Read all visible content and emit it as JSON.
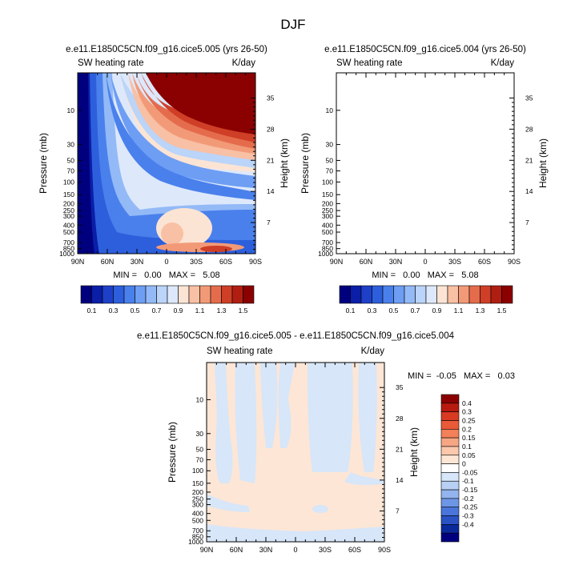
{
  "figure": {
    "title": "DJF"
  },
  "chart_data": [
    {
      "type": "heatmap",
      "panel": "left",
      "title": "e.e11.E1850C5CN.f09_g16.cice5.005 (yrs 26-50)",
      "variable": "SW heating rate",
      "units": "K/day",
      "ylabel": "Pressure (mb)",
      "ylabel_right": "Height (km)",
      "x_ticks": [
        "90N",
        "60N",
        "30N",
        "0",
        "30S",
        "60S",
        "90S"
      ],
      "y_ticks": [
        "10",
        "30",
        "50",
        "70",
        "100",
        "150",
        "200",
        "250",
        "300",
        "400",
        "500",
        "700",
        "850",
        "1000"
      ],
      "height_ticks": [
        "35",
        "28",
        "21",
        "14",
        "7"
      ],
      "min_max": "MIN =   0.00   MAX =   5.08",
      "colorbar_labels": [
        "0.1",
        "0.3",
        "0.5",
        "0.7",
        "0.9",
        "1.1",
        "1.3",
        "1.5"
      ],
      "xlim": [
        90,
        -90
      ],
      "ylim": [
        1000,
        3
      ]
    },
    {
      "type": "heatmap",
      "panel": "right",
      "title": "e.e11.E1850C5CN.f09_g16.cice5.004 (yrs 26-50)",
      "variable": "SW heating rate",
      "units": "K/day",
      "ylabel": "Pressure (mb)",
      "ylabel_right": "Height (km)",
      "x_ticks": [
        "90N",
        "60N",
        "30N",
        "0",
        "30S",
        "60S",
        "90S"
      ],
      "y_ticks": [
        "10",
        "30",
        "50",
        "70",
        "100",
        "150",
        "200",
        "250",
        "300",
        "400",
        "500",
        "700",
        "850",
        "1000"
      ],
      "height_ticks": [
        "35",
        "28",
        "21",
        "14",
        "7"
      ],
      "min_max": "MIN =   0.00   MAX =   5.08",
      "colorbar_labels": [
        "0.1",
        "0.3",
        "0.5",
        "0.7",
        "0.9",
        "1.1",
        "1.3",
        "1.5"
      ],
      "xlim": [
        90,
        -90
      ],
      "ylim": [
        1000,
        3
      ]
    },
    {
      "type": "heatmap",
      "panel": "difference",
      "title": "e.e11.E1850C5CN.f09_g16.cice5.005 - e.e11.E1850C5CN.f09_g16.cice5.004",
      "variable": "SW heating rate",
      "units": "K/day",
      "ylabel": "Pressure (mb)",
      "ylabel_right": "Height (km)",
      "x_ticks": [
        "90N",
        "60N",
        "30N",
        "0",
        "30S",
        "60S",
        "90S"
      ],
      "y_ticks": [
        "10",
        "30",
        "50",
        "70",
        "100",
        "150",
        "200",
        "250",
        "300",
        "400",
        "500",
        "700",
        "850",
        "1000"
      ],
      "height_ticks": [
        "35",
        "28",
        "21",
        "14",
        "7"
      ],
      "min_max": "MIN =  -0.05   MAX =   0.03",
      "colorbar_labels": [
        "0.4",
        "0.3",
        "0.25",
        "0.2",
        "0.15",
        "0.1",
        "0.05",
        "0",
        "-0.05",
        "-0.1",
        "-0.15",
        "-0.2",
        "-0.25",
        "-0.3",
        "-0.4"
      ],
      "xlim": [
        90,
        -90
      ],
      "ylim": [
        1000,
        3
      ]
    }
  ],
  "colors": {
    "seq_palette": [
      "#00007f",
      "#0a1ea8",
      "#1e40c8",
      "#2d5fdc",
      "#4a80ec",
      "#6d9ef4",
      "#93baf7",
      "#bbd4f9",
      "#dde8fb",
      "#fce4d4",
      "#f8c0a4",
      "#f29a78",
      "#e46c4c",
      "#cf3f27",
      "#b01e12",
      "#8b0000"
    ],
    "diff_palette": [
      "#8b0000",
      "#b81a10",
      "#d83a22",
      "#ea5a38",
      "#f28058",
      "#f7a684",
      "#fbc8ac",
      "#fde6d6",
      "#ffffff",
      "#d7e6f8",
      "#b7d0f4",
      "#93b4ee",
      "#6d96e6",
      "#4a76dc",
      "#2a52c4",
      "#0a2a9c",
      "#00007f"
    ],
    "diff_pos": "#fde6d6",
    "diff_neg": "#d7e6f8"
  }
}
